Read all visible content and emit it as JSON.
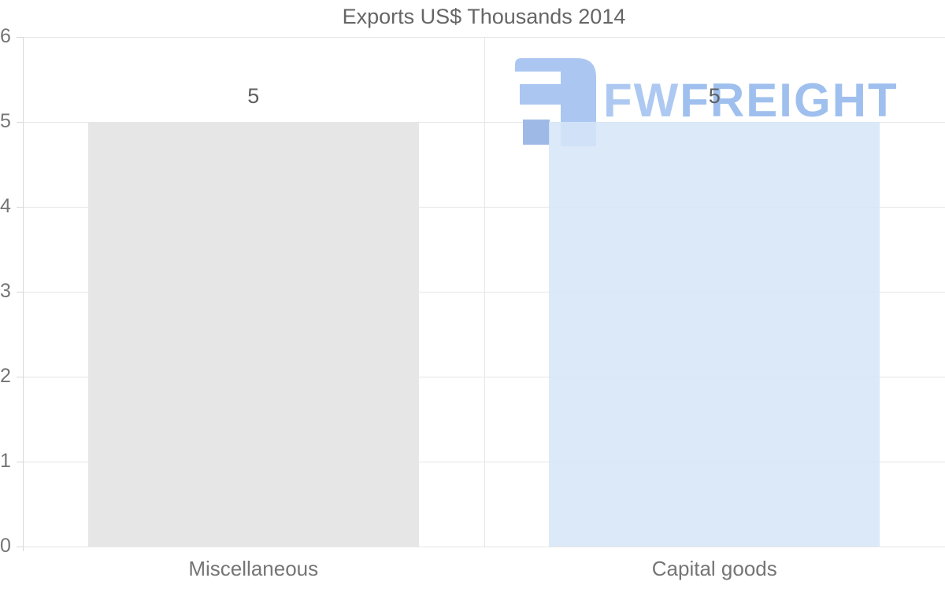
{
  "chart_data": {
    "type": "bar",
    "title": "Exports US$ Thousands 2014",
    "categories": [
      "Miscellaneous",
      "Capital goods"
    ],
    "values": [
      5,
      5
    ],
    "data_labels": [
      "5",
      "5"
    ],
    "series": [
      {
        "name": "Exports",
        "values": [
          5,
          5
        ]
      }
    ],
    "bar_colors": [
      "#e6e6e6",
      "#d6e6f8"
    ],
    "bar_fill_alpha": [
      1,
      0.88
    ],
    "xlabel": "",
    "ylabel": "",
    "ylim": [
      0,
      6
    ],
    "yticks": [
      "0",
      "1",
      "2",
      "3",
      "4",
      "5",
      "6"
    ],
    "grid": "horizontal gridlines + vertical column divider, light gray",
    "legend": "none"
  },
  "axes": {
    "grid_color": "#e6e6e6",
    "axis_color": "#d9d9d9",
    "tick_label_color": "#757575",
    "category_label_color": "#757575"
  },
  "title_style": {
    "color": "#666666"
  },
  "watermark": {
    "text_fw": "FW",
    "text_freight": "FREIGHT",
    "fw_color": "#adc9f2",
    "freight_color": "#9fc0ee",
    "icon_main_color": "#abc7f1",
    "icon_dark_color": "#9fb9e7"
  }
}
